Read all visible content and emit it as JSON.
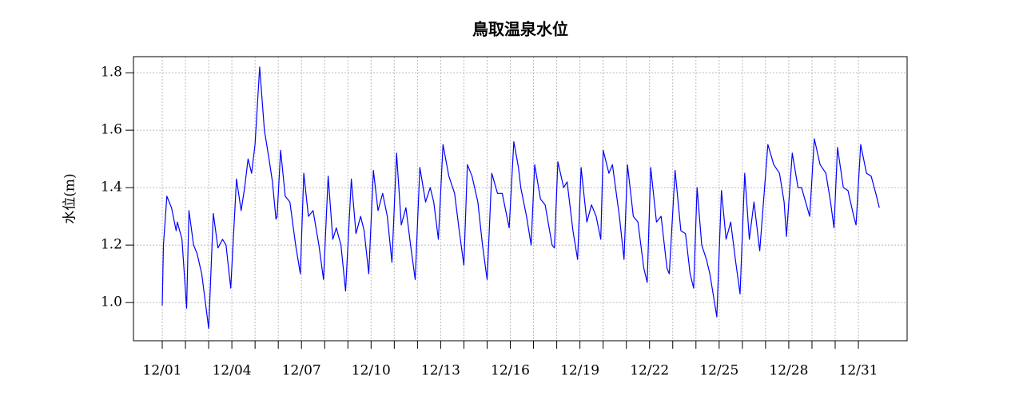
{
  "chart_data": {
    "type": "line",
    "title": "鳥取温泉水位",
    "y_label": "水位(m)",
    "x": [
      0,
      0.05,
      0.2,
      0.4,
      0.6,
      0.65,
      0.85,
      0.95,
      1.05,
      1.15,
      1.35,
      1.5,
      1.7,
      2.0,
      2.2,
      2.4,
      2.6,
      2.75,
      2.95,
      3.2,
      3.4,
      3.55,
      3.7,
      3.85,
      4.0,
      4.2,
      4.4,
      4.6,
      4.75,
      4.9,
      4.95,
      5.1,
      5.3,
      5.5,
      5.75,
      5.95,
      6.1,
      6.3,
      6.5,
      6.75,
      6.95,
      7.15,
      7.35,
      7.5,
      7.7,
      7.9,
      8.15,
      8.35,
      8.55,
      8.7,
      8.9,
      9.1,
      9.3,
      9.5,
      9.7,
      9.9,
      10.1,
      10.3,
      10.5,
      10.7,
      10.9,
      11.1,
      11.35,
      11.55,
      11.7,
      11.9,
      12.1,
      12.35,
      12.6,
      12.8,
      13.0,
      13.15,
      13.35,
      13.6,
      13.8,
      14.0,
      14.2,
      14.45,
      14.65,
      14.85,
      14.95,
      15.15,
      15.35,
      15.45,
      15.7,
      15.9,
      16.05,
      16.3,
      16.5,
      16.8,
      16.9,
      17.05,
      17.3,
      17.45,
      17.7,
      17.9,
      18.05,
      18.3,
      18.5,
      18.7,
      18.9,
      19.0,
      19.25,
      19.4,
      19.7,
      19.9,
      20.05,
      20.3,
      20.5,
      20.75,
      20.9,
      21.05,
      21.3,
      21.5,
      21.75,
      21.85,
      22.1,
      22.35,
      22.55,
      22.75,
      22.9,
      23.05,
      23.25,
      23.45,
      23.6,
      23.9,
      24.1,
      24.3,
      24.5,
      24.7,
      24.9,
      25.1,
      25.3,
      25.5,
      25.75,
      26.1,
      26.35,
      26.6,
      26.8,
      26.9,
      27.15,
      27.4,
      27.55,
      27.9,
      28.1,
      28.35,
      28.6,
      28.8,
      28.95,
      29.1,
      29.35,
      29.55,
      29.8,
      29.9,
      30.1,
      30.35,
      30.55,
      30.75,
      30.9
    ],
    "series": [
      {
        "name": "水位",
        "color": "#0000ff",
        "values": [
          0.99,
          1.2,
          1.37,
          1.33,
          1.25,
          1.28,
          1.22,
          1.1,
          0.98,
          1.32,
          1.2,
          1.17,
          1.1,
          0.91,
          1.31,
          1.19,
          1.22,
          1.2,
          1.05,
          1.43,
          1.32,
          1.4,
          1.5,
          1.45,
          1.55,
          1.82,
          1.6,
          1.5,
          1.42,
          1.29,
          1.3,
          1.53,
          1.37,
          1.35,
          1.2,
          1.1,
          1.45,
          1.3,
          1.32,
          1.2,
          1.08,
          1.44,
          1.22,
          1.26,
          1.2,
          1.04,
          1.43,
          1.24,
          1.3,
          1.25,
          1.1,
          1.46,
          1.32,
          1.38,
          1.3,
          1.14,
          1.52,
          1.27,
          1.33,
          1.2,
          1.08,
          1.47,
          1.35,
          1.4,
          1.35,
          1.22,
          1.55,
          1.44,
          1.38,
          1.25,
          1.13,
          1.48,
          1.44,
          1.35,
          1.2,
          1.08,
          1.45,
          1.38,
          1.38,
          1.3,
          1.26,
          1.56,
          1.47,
          1.4,
          1.3,
          1.2,
          1.48,
          1.36,
          1.34,
          1.2,
          1.19,
          1.49,
          1.4,
          1.42,
          1.25,
          1.15,
          1.47,
          1.28,
          1.34,
          1.3,
          1.22,
          1.53,
          1.45,
          1.48,
          1.3,
          1.15,
          1.48,
          1.3,
          1.28,
          1.12,
          1.07,
          1.47,
          1.28,
          1.3,
          1.12,
          1.1,
          1.46,
          1.25,
          1.24,
          1.1,
          1.05,
          1.4,
          1.2,
          1.15,
          1.1,
          0.95,
          1.39,
          1.22,
          1.28,
          1.15,
          1.03,
          1.45,
          1.22,
          1.35,
          1.18,
          1.55,
          1.48,
          1.45,
          1.35,
          1.23,
          1.52,
          1.4,
          1.4,
          1.3,
          1.57,
          1.48,
          1.45,
          1.35,
          1.26,
          1.54,
          1.4,
          1.39,
          1.3,
          1.27,
          1.55,
          1.45,
          1.44,
          1.38,
          1.33
        ]
      }
    ],
    "xlim": [
      -1.24,
      32.1
    ],
    "xticks": [
      {
        "value": 0,
        "label": "12/01"
      },
      {
        "value": 3,
        "label": "12/04"
      },
      {
        "value": 6,
        "label": "12/07"
      },
      {
        "value": 9,
        "label": "12/10"
      },
      {
        "value": 12,
        "label": "12/13"
      },
      {
        "value": 15,
        "label": "12/16"
      },
      {
        "value": 18,
        "label": "12/19"
      },
      {
        "value": 21,
        "label": "12/22"
      },
      {
        "value": 24,
        "label": "12/25"
      },
      {
        "value": 27,
        "label": "12/28"
      },
      {
        "value": 30,
        "label": "12/31"
      }
    ],
    "xminorticks": [
      1,
      2,
      4,
      5,
      7,
      8,
      10,
      11,
      13,
      14,
      16,
      17,
      19,
      20,
      22,
      23,
      25,
      26,
      28,
      29
    ],
    "ylim": [
      0.867,
      1.856
    ],
    "yticks": [
      {
        "value": 1,
        "label": "1.0"
      },
      1.2,
      1.4,
      1.6,
      1.8
    ],
    "grid": true
  }
}
